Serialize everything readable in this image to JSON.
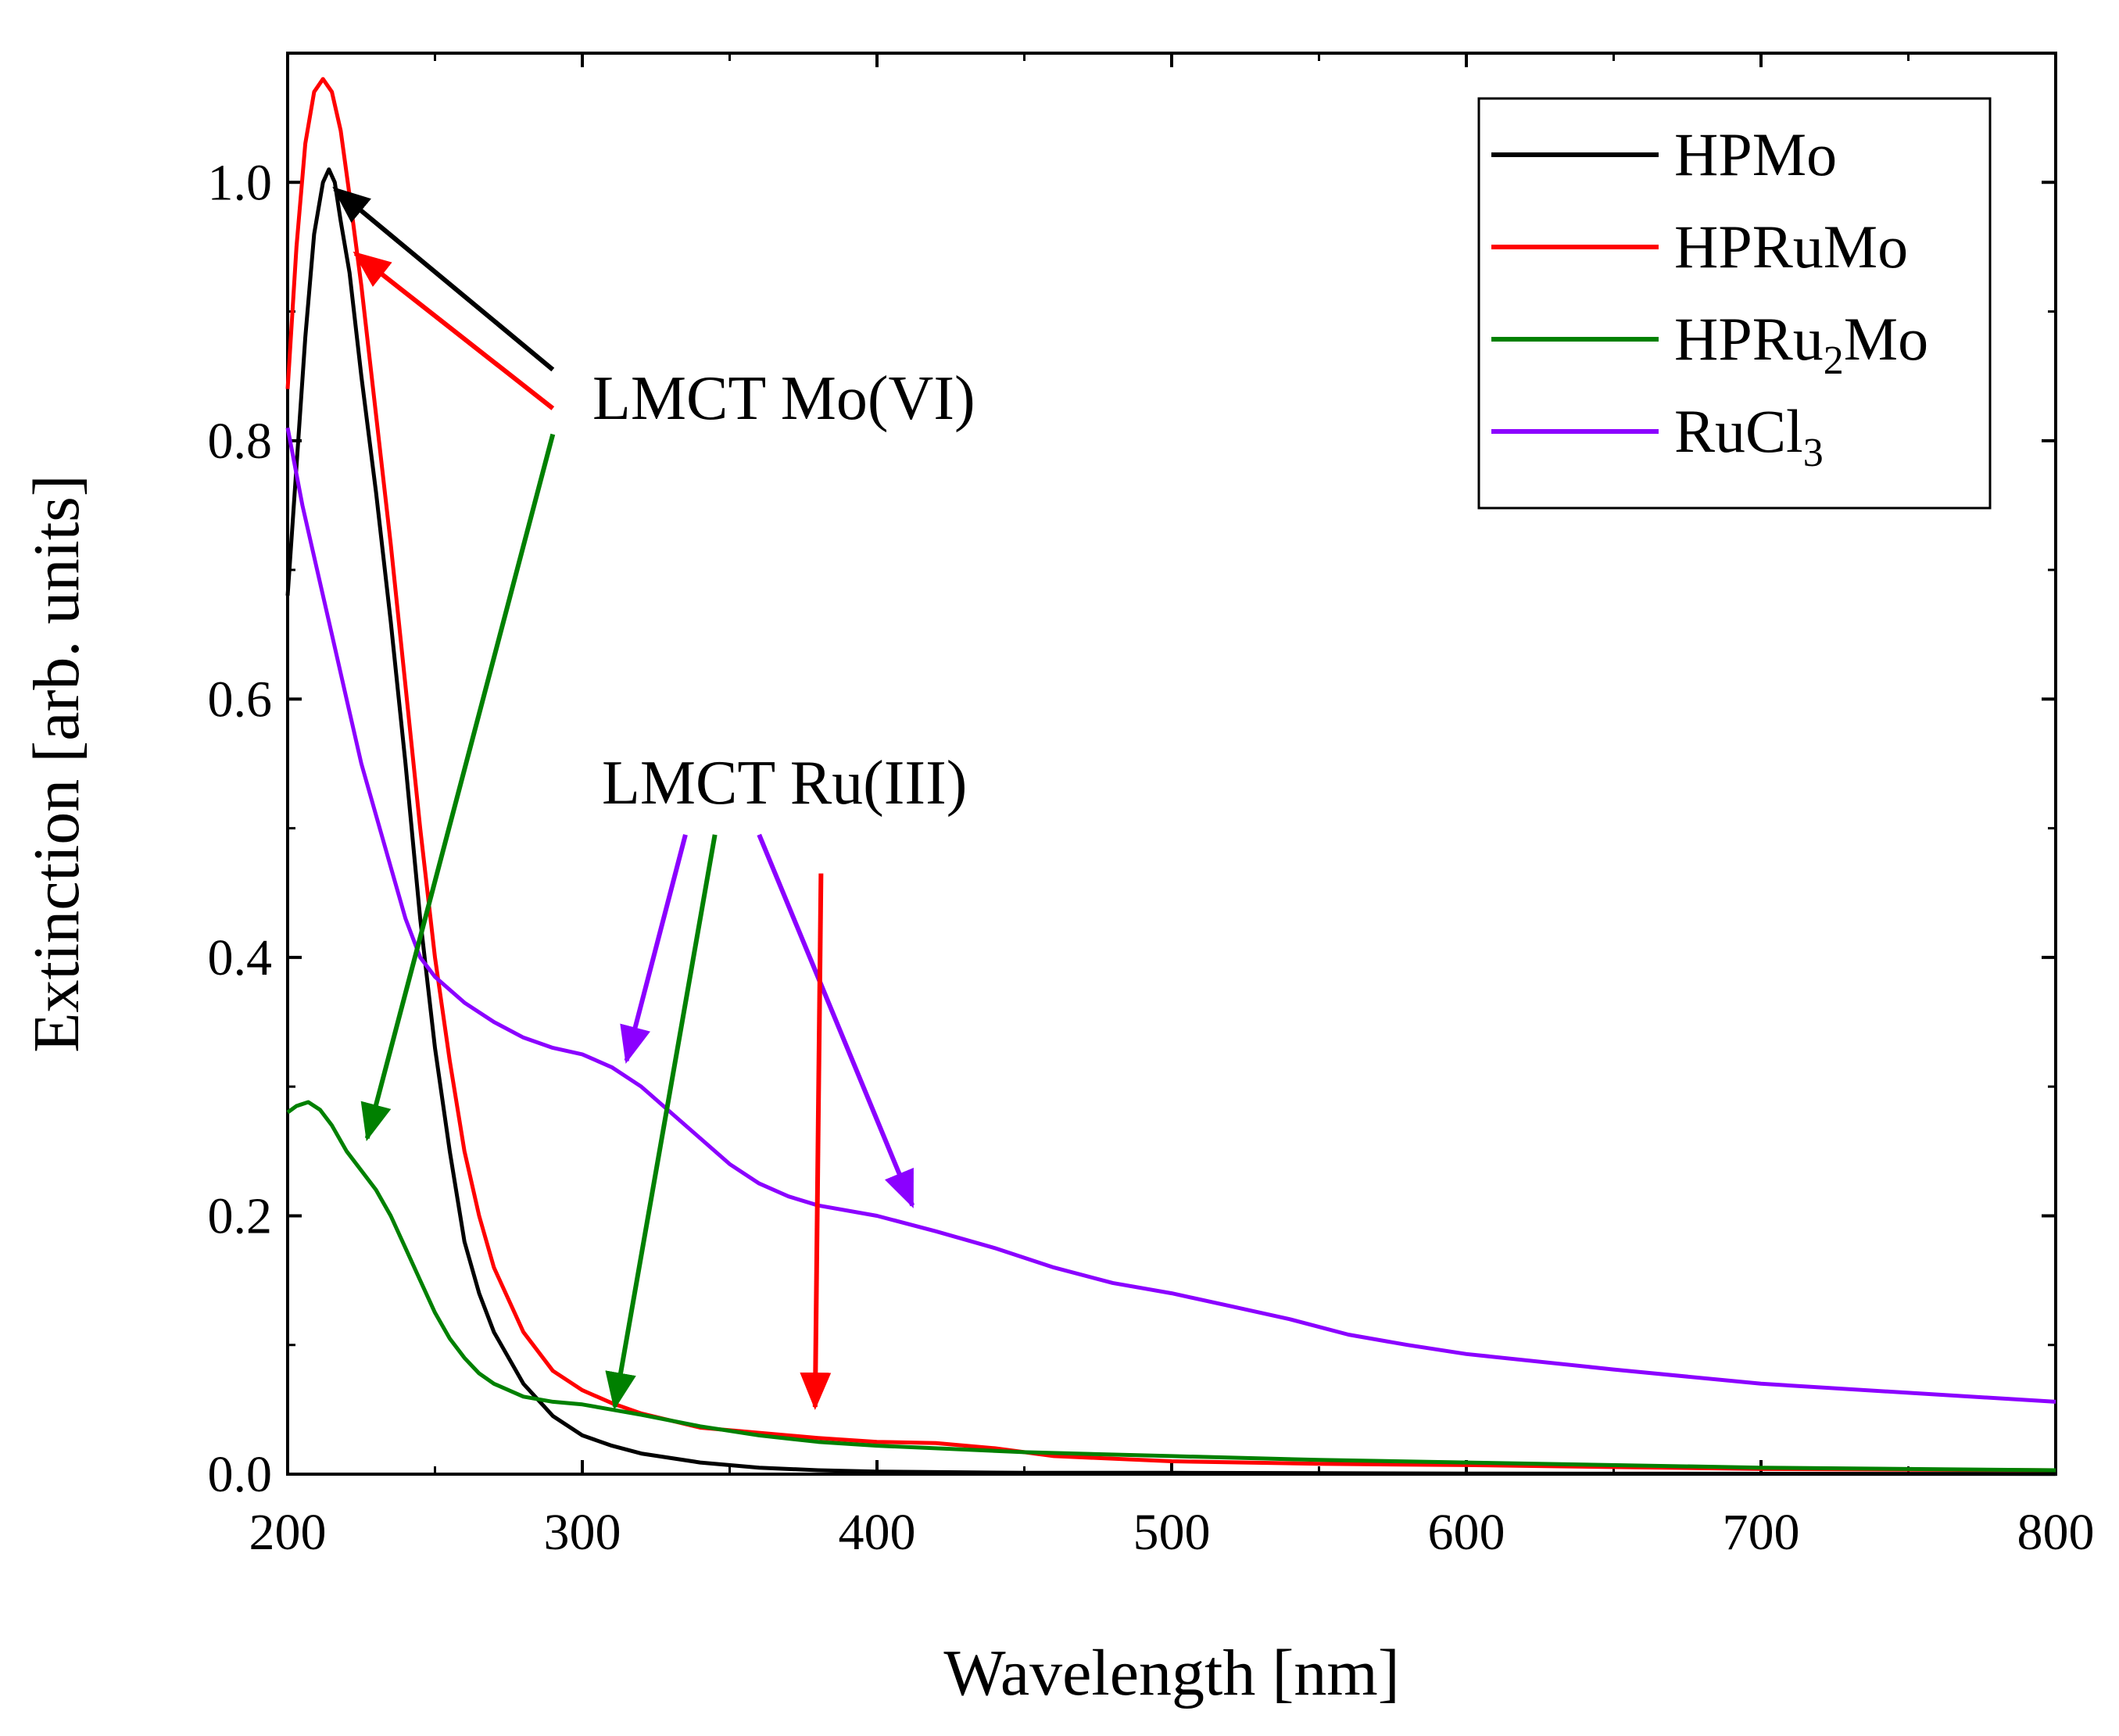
{
  "chart_data": {
    "type": "line",
    "xlabel": "Wavelength [nm]",
    "ylabel": "Extinction [arb. units]",
    "xlim": [
      200,
      800
    ],
    "ylim": [
      0,
      1.1
    ],
    "x_ticks": [
      200,
      300,
      400,
      500,
      600,
      700,
      800
    ],
    "x_tick_labels": [
      "200",
      "300",
      "400",
      "500",
      "600",
      "700",
      "800"
    ],
    "y_ticks": [
      0,
      0.2,
      0.4,
      0.6,
      0.8,
      1.0
    ],
    "y_tick_labels": [
      "0.0",
      "0.2",
      "0.4",
      "0.6",
      "0.8",
      "1.0"
    ],
    "grid": false,
    "legend_position": "top-right",
    "series": [
      {
        "name": "HPMo",
        "name_main": "HPMo",
        "name_sub": "",
        "name_tail": "",
        "color": "#000000",
        "points": [
          [
            200,
            0.68
          ],
          [
            203,
            0.78
          ],
          [
            206,
            0.88
          ],
          [
            209,
            0.96
          ],
          [
            212,
            1.0
          ],
          [
            214,
            1.01
          ],
          [
            216,
            1.0
          ],
          [
            218,
            0.97
          ],
          [
            221,
            0.93
          ],
          [
            225,
            0.85
          ],
          [
            230,
            0.76
          ],
          [
            235,
            0.66
          ],
          [
            240,
            0.55
          ],
          [
            245,
            0.43
          ],
          [
            250,
            0.33
          ],
          [
            255,
            0.25
          ],
          [
            260,
            0.18
          ],
          [
            265,
            0.14
          ],
          [
            270,
            0.11
          ],
          [
            280,
            0.07
          ],
          [
            290,
            0.045
          ],
          [
            300,
            0.03
          ],
          [
            310,
            0.022
          ],
          [
            320,
            0.016
          ],
          [
            340,
            0.009
          ],
          [
            360,
            0.005
          ],
          [
            380,
            0.003
          ],
          [
            400,
            0.002
          ],
          [
            450,
            0.001
          ],
          [
            500,
            0.001
          ],
          [
            600,
            0.0005
          ],
          [
            700,
            0.0003
          ],
          [
            800,
            0.0002
          ]
        ]
      },
      {
        "name": "HPRuMo",
        "name_main": "HPRuMo",
        "name_sub": "",
        "name_tail": "",
        "color": "#ff0000",
        "points": [
          [
            200,
            0.84
          ],
          [
            203,
            0.95
          ],
          [
            206,
            1.03
          ],
          [
            209,
            1.07
          ],
          [
            212,
            1.08
          ],
          [
            215,
            1.07
          ],
          [
            218,
            1.04
          ],
          [
            221,
            0.99
          ],
          [
            225,
            0.92
          ],
          [
            230,
            0.82
          ],
          [
            235,
            0.72
          ],
          [
            240,
            0.61
          ],
          [
            245,
            0.5
          ],
          [
            250,
            0.4
          ],
          [
            255,
            0.32
          ],
          [
            260,
            0.25
          ],
          [
            265,
            0.2
          ],
          [
            270,
            0.16
          ],
          [
            280,
            0.11
          ],
          [
            290,
            0.08
          ],
          [
            300,
            0.065
          ],
          [
            310,
            0.055
          ],
          [
            320,
            0.047
          ],
          [
            340,
            0.036
          ],
          [
            360,
            0.032
          ],
          [
            380,
            0.028
          ],
          [
            400,
            0.025
          ],
          [
            420,
            0.024
          ],
          [
            440,
            0.02
          ],
          [
            460,
            0.014
          ],
          [
            500,
            0.01
          ],
          [
            550,
            0.008
          ],
          [
            600,
            0.007
          ],
          [
            700,
            0.004
          ],
          [
            800,
            0.003
          ]
        ]
      },
      {
        "name": "HPRu2Mo",
        "name_main": "HPRu",
        "name_sub": "2",
        "name_tail": "Mo",
        "color": "#008000",
        "points": [
          [
            200,
            0.28
          ],
          [
            203,
            0.285
          ],
          [
            207,
            0.288
          ],
          [
            211,
            0.282
          ],
          [
            215,
            0.27
          ],
          [
            220,
            0.25
          ],
          [
            225,
            0.235
          ],
          [
            230,
            0.22
          ],
          [
            235,
            0.2
          ],
          [
            240,
            0.175
          ],
          [
            245,
            0.15
          ],
          [
            250,
            0.125
          ],
          [
            255,
            0.105
          ],
          [
            260,
            0.09
          ],
          [
            265,
            0.078
          ],
          [
            270,
            0.07
          ],
          [
            280,
            0.06
          ],
          [
            290,
            0.056
          ],
          [
            300,
            0.054
          ],
          [
            310,
            0.05
          ],
          [
            320,
            0.046
          ],
          [
            340,
            0.037
          ],
          [
            360,
            0.03
          ],
          [
            380,
            0.025
          ],
          [
            400,
            0.022
          ],
          [
            420,
            0.02
          ],
          [
            450,
            0.017
          ],
          [
            500,
            0.014
          ],
          [
            550,
            0.011
          ],
          [
            600,
            0.009
          ],
          [
            700,
            0.005
          ],
          [
            800,
            0.003
          ]
        ]
      },
      {
        "name": "RuCl3",
        "name_main": "RuCl",
        "name_sub": "3",
        "name_tail": "",
        "color": "#8b00ff",
        "points": [
          [
            200,
            0.81
          ],
          [
            205,
            0.75
          ],
          [
            210,
            0.7
          ],
          [
            215,
            0.65
          ],
          [
            220,
            0.6
          ],
          [
            225,
            0.55
          ],
          [
            230,
            0.51
          ],
          [
            235,
            0.47
          ],
          [
            240,
            0.43
          ],
          [
            245,
            0.4
          ],
          [
            250,
            0.385
          ],
          [
            260,
            0.365
          ],
          [
            270,
            0.35
          ],
          [
            280,
            0.338
          ],
          [
            290,
            0.33
          ],
          [
            300,
            0.325
          ],
          [
            310,
            0.315
          ],
          [
            320,
            0.3
          ],
          [
            330,
            0.28
          ],
          [
            340,
            0.26
          ],
          [
            350,
            0.24
          ],
          [
            360,
            0.225
          ],
          [
            370,
            0.215
          ],
          [
            380,
            0.208
          ],
          [
            400,
            0.2
          ],
          [
            420,
            0.188
          ],
          [
            440,
            0.175
          ],
          [
            460,
            0.16
          ],
          [
            480,
            0.148
          ],
          [
            500,
            0.14
          ],
          [
            520,
            0.13
          ],
          [
            540,
            0.12
          ],
          [
            560,
            0.108
          ],
          [
            580,
            0.1
          ],
          [
            600,
            0.093
          ],
          [
            650,
            0.081
          ],
          [
            700,
            0.07
          ],
          [
            750,
            0.063
          ],
          [
            800,
            0.056
          ]
        ]
      }
    ],
    "annotations": [
      {
        "text": "LMCT Mo(VI)",
        "arrows": [
          {
            "from": [
              290,
              0.855
            ],
            "to": [
              216,
              0.995
            ],
            "color": "#000000"
          },
          {
            "from": [
              290,
              0.825
            ],
            "to": [
              223,
              0.945
            ],
            "color": "#ff0000"
          },
          {
            "from": [
              290,
              0.805
            ],
            "to": [
              227,
              0.26
            ],
            "color": "#008000"
          }
        ]
      },
      {
        "text": "LMCT Ru(III)",
        "arrows": [
          {
            "from": [
              335,
              0.495
            ],
            "to": [
              315,
              0.32
            ],
            "color": "#8b00ff"
          },
          {
            "from": [
              345,
              0.495
            ],
            "to": [
              311,
              0.052
            ],
            "color": "#008000"
          },
          {
            "from": [
              360,
              0.495
            ],
            "to": [
              412,
              0.208
            ],
            "color": "#8b00ff"
          },
          {
            "from": [
              381,
              0.465
            ],
            "to": [
              379,
              0.052
            ],
            "color": "#ff0000"
          }
        ]
      }
    ]
  }
}
